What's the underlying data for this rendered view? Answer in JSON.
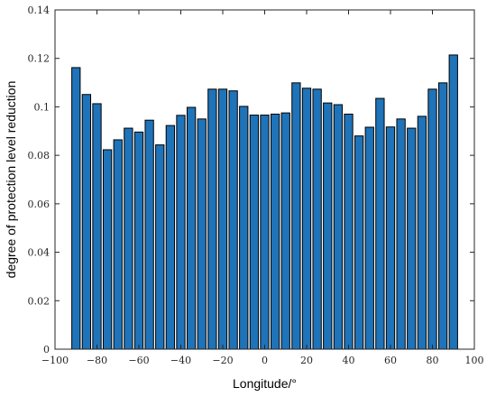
{
  "chart_data": {
    "type": "bar",
    "xlabel": "Longitude/°",
    "ylabel": "degree of protection level reduction",
    "xlim": [
      -100,
      100
    ],
    "ylim": [
      0,
      0.14
    ],
    "bar_color": "#1f73b8",
    "xticks": [
      {
        "value": -100,
        "label": "−100"
      },
      {
        "value": -80,
        "label": "−80"
      },
      {
        "value": -60,
        "label": "−60"
      },
      {
        "value": -40,
        "label": "−40"
      },
      {
        "value": -20,
        "label": "−20"
      },
      {
        "value": 0,
        "label": "0"
      },
      {
        "value": 20,
        "label": "20"
      },
      {
        "value": 40,
        "label": "40"
      },
      {
        "value": 60,
        "label": "60"
      },
      {
        "value": 80,
        "label": "80"
      },
      {
        "value": 100,
        "label": "100"
      }
    ],
    "yticks": [
      {
        "value": 0,
        "label": "0"
      },
      {
        "value": 0.02,
        "label": "0.02"
      },
      {
        "value": 0.04,
        "label": "0.04"
      },
      {
        "value": 0.06,
        "label": "0.06"
      },
      {
        "value": 0.08,
        "label": "0.08"
      },
      {
        "value": 0.1,
        "label": "0.1"
      },
      {
        "value": 0.12,
        "label": "0.12"
      },
      {
        "value": 0.14,
        "label": "0.14"
      }
    ],
    "x": [
      -90,
      -85,
      -80,
      -75,
      -70,
      -65,
      -60,
      -55,
      -50,
      -45,
      -40,
      -35,
      -30,
      -25,
      -20,
      -15,
      -10,
      -5,
      0,
      5,
      10,
      15,
      20,
      25,
      30,
      35,
      40,
      45,
      50,
      55,
      60,
      65,
      70,
      75,
      80,
      85,
      90
    ],
    "values": [
      0.1162,
      0.1051,
      0.1013,
      0.0823,
      0.0864,
      0.0912,
      0.0896,
      0.0945,
      0.0843,
      0.0923,
      0.0965,
      0.0998,
      0.095,
      0.1073,
      0.1073,
      0.1066,
      0.1002,
      0.0966,
      0.0966,
      0.097,
      0.0975,
      0.1099,
      0.1077,
      0.1073,
      0.1016,
      0.1009,
      0.097,
      0.088,
      0.0916,
      0.1035,
      0.0917,
      0.095,
      0.0912,
      0.0961,
      0.1073,
      0.1099,
      0.1214
    ]
  }
}
